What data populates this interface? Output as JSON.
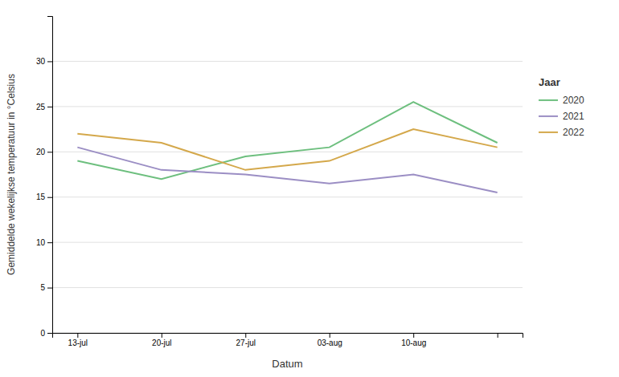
{
  "chart_data": {
    "type": "line",
    "x_label": "Datum",
    "y_label": "Gemiddelde wekelijkse temperatuur in °Celsius",
    "categories": [
      "13-jul",
      "20-jul",
      "27-jul",
      "03-aug",
      "10-aug",
      null
    ],
    "series": [
      {
        "name": "2020",
        "color": "#6dbf7e",
        "values": [
          19.0,
          17.0,
          19.5,
          20.5,
          25.5,
          21.0
        ]
      },
      {
        "name": "2021",
        "color": "#9b8ec4",
        "values": [
          20.5,
          18.0,
          17.5,
          16.5,
          17.5,
          15.5
        ]
      },
      {
        "name": "2022",
        "color": "#d4a84b",
        "values": [
          22.0,
          21.0,
          18.0,
          19.0,
          22.5,
          20.5
        ]
      }
    ],
    "ylim": [
      0,
      35
    ],
    "yticks": [
      0,
      5,
      10,
      15,
      20,
      25,
      30
    ],
    "grid": true,
    "legend": "right",
    "legend_title": "Jaar"
  }
}
